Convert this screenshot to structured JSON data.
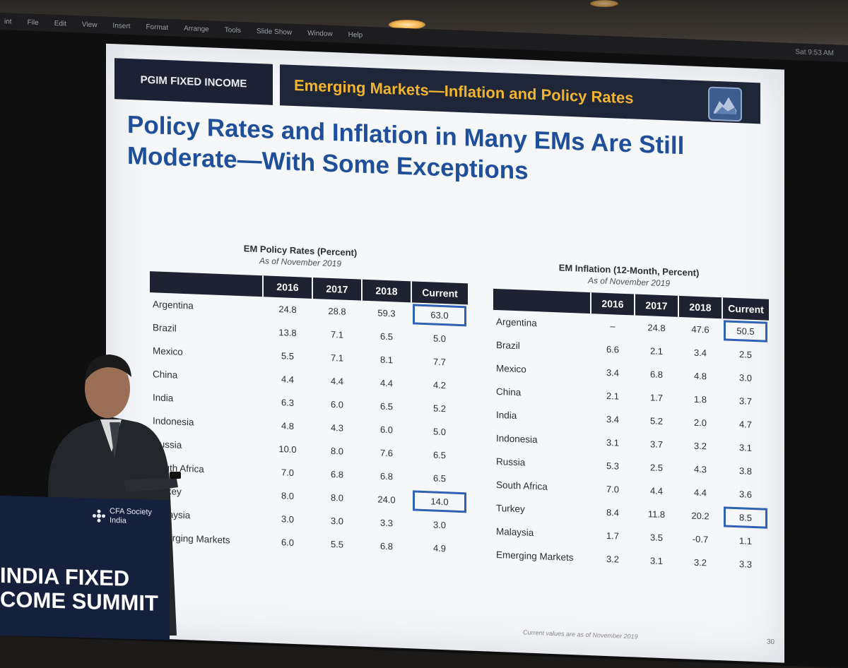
{
  "menubar": {
    "items": [
      "int",
      "File",
      "Edit",
      "View",
      "Insert",
      "Format",
      "Arrange",
      "Tools",
      "Slide Show",
      "Window",
      "Help"
    ],
    "clock": "Sat 9:53 AM"
  },
  "slide": {
    "brand": "PGIM FIXED INCOME",
    "header": "Emerging Markets—Inflation and Policy Rates",
    "title_line1": "Policy Rates and Inflation in Many EMs Are Still",
    "title_line2": "Moderate—With Some Exceptions",
    "footnote": "Current values are as of November 2019",
    "page": "30"
  },
  "policy_table": {
    "title": "EM Policy Rates (Percent)",
    "subtitle": "As of November 2019",
    "columns": [
      "",
      "2016",
      "2017",
      "2018",
      "Current"
    ],
    "rows": [
      [
        "Argentina",
        "24.8",
        "28.8",
        "59.3",
        "63.0"
      ],
      [
        "Brazil",
        "13.8",
        "7.1",
        "6.5",
        "5.0"
      ],
      [
        "Mexico",
        "5.5",
        "7.1",
        "8.1",
        "7.7"
      ],
      [
        "China",
        "4.4",
        "4.4",
        "4.4",
        "4.2"
      ],
      [
        "India",
        "6.3",
        "6.0",
        "6.5",
        "5.2"
      ],
      [
        "Indonesia",
        "4.8",
        "4.3",
        "6.0",
        "5.0"
      ],
      [
        "Russia",
        "10.0",
        "8.0",
        "7.6",
        "6.5"
      ],
      [
        "South Africa",
        "7.0",
        "6.8",
        "6.8",
        "6.5"
      ],
      [
        "Turkey",
        "8.0",
        "8.0",
        "24.0",
        "14.0"
      ],
      [
        "Malaysia",
        "3.0",
        "3.0",
        "3.3",
        "3.0"
      ],
      [
        "Emerging Markets",
        "6.0",
        "5.5",
        "6.8",
        "4.9"
      ]
    ],
    "highlighted": [
      "Argentina",
      "Turkey"
    ]
  },
  "inflation_table": {
    "title": "EM Inflation (12-Month, Percent)",
    "subtitle": "As of November 2019",
    "columns": [
      "",
      "2016",
      "2017",
      "2018",
      "Current"
    ],
    "rows": [
      [
        "Argentina",
        "–",
        "24.8",
        "47.6",
        "50.5"
      ],
      [
        "Brazil",
        "6.6",
        "2.1",
        "3.4",
        "2.5"
      ],
      [
        "Mexico",
        "3.4",
        "6.8",
        "4.8",
        "3.0"
      ],
      [
        "China",
        "2.1",
        "1.7",
        "1.8",
        "3.7"
      ],
      [
        "India",
        "3.4",
        "5.2",
        "2.0",
        "4.7"
      ],
      [
        "Indonesia",
        "3.1",
        "3.7",
        "3.2",
        "3.1"
      ],
      [
        "Russia",
        "5.3",
        "2.5",
        "4.3",
        "3.8"
      ],
      [
        "South Africa",
        "7.0",
        "4.4",
        "4.4",
        "3.6"
      ],
      [
        "Turkey",
        "8.4",
        "11.8",
        "20.2",
        "8.5"
      ],
      [
        "Malaysia",
        "1.7",
        "3.5",
        "-0.7",
        "1.1"
      ],
      [
        "Emerging Markets",
        "3.2",
        "3.1",
        "3.2",
        "3.3"
      ]
    ],
    "highlighted": [
      "Argentina",
      "Turkey"
    ]
  },
  "podium": {
    "org_line1": "CFA Society",
    "org_line2": "India",
    "event_line1": "INDIA FIXED",
    "event_line2": "COME SUMMIT"
  },
  "colors": {
    "title_blue": "#1f4f9a",
    "header_gold": "#f0b431",
    "header_navy": "#1f2638",
    "highlight_blue": "#2f62b2",
    "podium_navy": "#15203c"
  }
}
